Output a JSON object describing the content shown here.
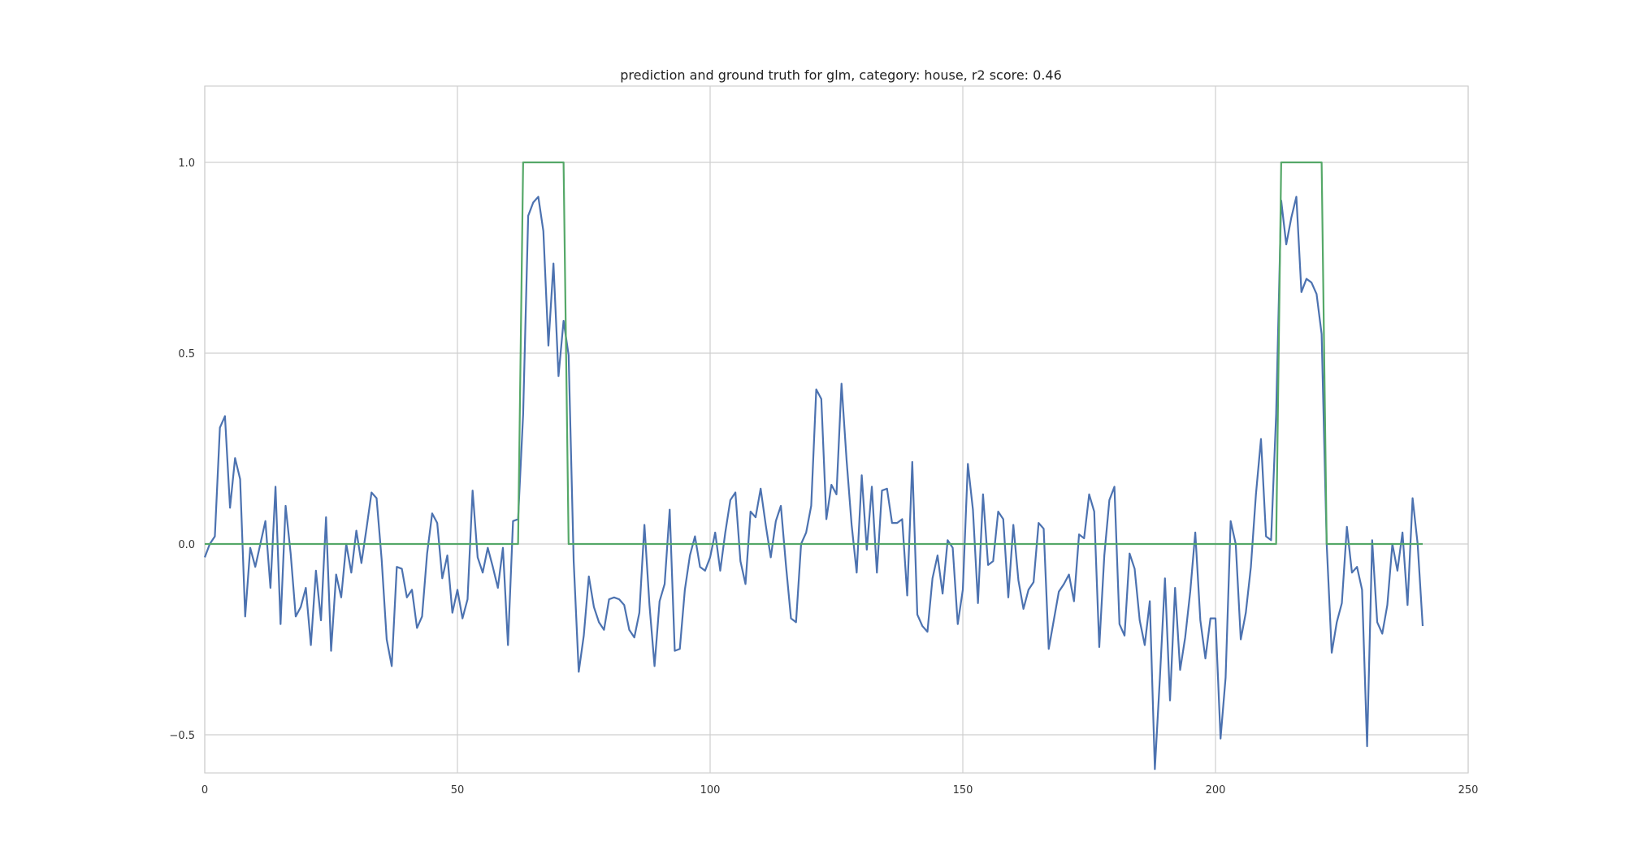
{
  "chart_data": {
    "type": "line",
    "title": "prediction and ground truth for glm, category: house, r2 score: 0.46",
    "xlabel": "",
    "ylabel": "",
    "xlim": [
      0,
      250
    ],
    "ylim": [
      -0.6,
      1.2
    ],
    "xticks": [
      0,
      50,
      100,
      150,
      200,
      250
    ],
    "xtick_labels": [
      "0",
      "50",
      "100",
      "150",
      "200",
      "250"
    ],
    "yticks": [
      -0.5,
      0.0,
      0.5,
      1.0
    ],
    "ytick_labels": [
      "−0.5",
      "0.0",
      "0.5",
      "1.0"
    ],
    "grid": true,
    "legend": "none",
    "series": [
      {
        "color": "#4c72b0",
        "values": [
          -0.035,
          0.0,
          0.02,
          0.305,
          0.335,
          0.095,
          0.225,
          0.17,
          -0.19,
          -0.01,
          -0.06,
          0.0,
          0.06,
          -0.115,
          0.15,
          -0.21,
          0.1,
          -0.025,
          -0.19,
          -0.165,
          -0.115,
          -0.265,
          -0.07,
          -0.2,
          0.07,
          -0.28,
          -0.08,
          -0.14,
          0.0,
          -0.075,
          0.035,
          -0.05,
          0.04,
          0.135,
          0.12,
          -0.04,
          -0.25,
          -0.32,
          -0.06,
          -0.065,
          -0.14,
          -0.12,
          -0.22,
          -0.19,
          -0.025,
          0.08,
          0.055,
          -0.09,
          -0.03,
          -0.18,
          -0.12,
          -0.195,
          -0.145,
          0.14,
          -0.035,
          -0.075,
          -0.01,
          -0.06,
          -0.115,
          -0.01,
          -0.265,
          0.06,
          0.065,
          0.34,
          0.86,
          0.895,
          0.91,
          0.82,
          0.52,
          0.735,
          0.44,
          0.585,
          0.495,
          -0.045,
          -0.335,
          -0.24,
          -0.085,
          -0.165,
          -0.205,
          -0.225,
          -0.145,
          -0.14,
          -0.145,
          -0.16,
          -0.225,
          -0.245,
          -0.18,
          0.05,
          -0.16,
          -0.32,
          -0.15,
          -0.105,
          0.09,
          -0.28,
          -0.275,
          -0.12,
          -0.03,
          0.02,
          -0.06,
          -0.07,
          -0.035,
          0.03,
          -0.07,
          0.03,
          0.115,
          0.135,
          -0.045,
          -0.105,
          0.085,
          0.07,
          0.145,
          0.05,
          -0.035,
          0.06,
          0.1,
          -0.055,
          -0.195,
          -0.205,
          0.0,
          0.03,
          0.1,
          0.405,
          0.38,
          0.065,
          0.155,
          0.13,
          0.42,
          0.22,
          0.05,
          -0.075,
          0.18,
          -0.015,
          0.15,
          -0.075,
          0.14,
          0.145,
          0.055,
          0.055,
          0.065,
          -0.135,
          0.215,
          -0.185,
          -0.215,
          -0.23,
          -0.09,
          -0.03,
          -0.13,
          0.01,
          -0.01,
          -0.21,
          -0.12,
          0.21,
          0.09,
          -0.155,
          0.13,
          -0.055,
          -0.045,
          0.085,
          0.065,
          -0.14,
          0.05,
          -0.095,
          -0.17,
          -0.12,
          -0.1,
          0.055,
          0.04,
          -0.275,
          -0.2,
          -0.125,
          -0.105,
          -0.08,
          -0.15,
          0.025,
          0.015,
          0.13,
          0.085,
          -0.27,
          -0.03,
          0.115,
          0.15,
          -0.21,
          -0.24,
          -0.025,
          -0.065,
          -0.2,
          -0.265,
          -0.15,
          -0.59,
          -0.35,
          -0.09,
          -0.41,
          -0.115,
          -0.33,
          -0.245,
          -0.125,
          0.03,
          -0.2,
          -0.3,
          -0.195,
          -0.195,
          -0.51,
          -0.35,
          0.06,
          0.0,
          -0.25,
          -0.18,
          -0.06,
          0.13,
          0.275,
          0.02,
          0.01,
          0.34,
          0.9,
          0.785,
          0.855,
          0.91,
          0.66,
          0.695,
          0.685,
          0.655,
          0.55,
          0.0,
          -0.285,
          -0.205,
          -0.155,
          0.045,
          -0.075,
          -0.06,
          -0.12,
          -0.53,
          0.01,
          -0.205,
          -0.235,
          -0.16,
          0.0,
          -0.07,
          0.03,
          -0.16,
          0.12,
          0.0,
          -0.215
        ]
      },
      {
        "color": "#55a868",
        "values": [
          0,
          0,
          0,
          0,
          0,
          0,
          0,
          0,
          0,
          0,
          0,
          0,
          0,
          0,
          0,
          0,
          0,
          0,
          0,
          0,
          0,
          0,
          0,
          0,
          0,
          0,
          0,
          0,
          0,
          0,
          0,
          0,
          0,
          0,
          0,
          0,
          0,
          0,
          0,
          0,
          0,
          0,
          0,
          0,
          0,
          0,
          0,
          0,
          0,
          0,
          0,
          0,
          0,
          0,
          0,
          0,
          0,
          0,
          0,
          0,
          0,
          0,
          0,
          1,
          1,
          1,
          1,
          1,
          1,
          1,
          1,
          1,
          0,
          0,
          0,
          0,
          0,
          0,
          0,
          0,
          0,
          0,
          0,
          0,
          0,
          0,
          0,
          0,
          0,
          0,
          0,
          0,
          0,
          0,
          0,
          0,
          0,
          0,
          0,
          0,
          0,
          0,
          0,
          0,
          0,
          0,
          0,
          0,
          0,
          0,
          0,
          0,
          0,
          0,
          0,
          0,
          0,
          0,
          0,
          0,
          0,
          0,
          0,
          0,
          0,
          0,
          0,
          0,
          0,
          0,
          0,
          0,
          0,
          0,
          0,
          0,
          0,
          0,
          0,
          0,
          0,
          0,
          0,
          0,
          0,
          0,
          0,
          0,
          0,
          0,
          0,
          0,
          0,
          0,
          0,
          0,
          0,
          0,
          0,
          0,
          0,
          0,
          0,
          0,
          0,
          0,
          0,
          0,
          0,
          0,
          0,
          0,
          0,
          0,
          0,
          0,
          0,
          0,
          0,
          0,
          0,
          0,
          0,
          0,
          0,
          0,
          0,
          0,
          0,
          0,
          0,
          0,
          0,
          0,
          0,
          0,
          0,
          0,
          0,
          0,
          0,
          0,
          0,
          0,
          0,
          0,
          0,
          0,
          0,
          0,
          0,
          0,
          0,
          1,
          1,
          1,
          1,
          1,
          1,
          1,
          1,
          1,
          0,
          0,
          0,
          0,
          0,
          0,
          0,
          0,
          0,
          0,
          0,
          0,
          0,
          0,
          0,
          0,
          0,
          0,
          0,
          0
        ]
      }
    ]
  }
}
